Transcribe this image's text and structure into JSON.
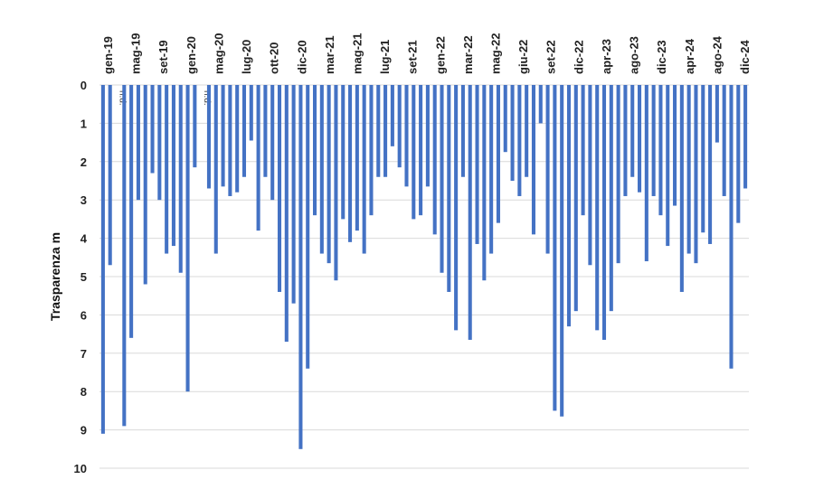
{
  "chart_data": {
    "type": "bar",
    "ylabel": "Trasparenza m",
    "ylim": [
      0,
      10
    ],
    "y_inverted": true,
    "x_axis_position": "top",
    "grid": true,
    "bar_color": "#4472C4",
    "missing_label": "n.d.",
    "x_tick_labels": [
      "gen-19",
      "mag-19",
      "set-19",
      "gen-20",
      "mag-20",
      "lug-20",
      "ott-20",
      "dic-20",
      "mar-21",
      "mag-21",
      "lug-21",
      "set-21",
      "gen-22",
      "mar-22",
      "mag-22",
      "giu-22",
      "set-22",
      "dic-22",
      "apr-23",
      "ago-23",
      "dic-23",
      "apr-24",
      "ago-24",
      "dic-24"
    ],
    "y_ticks": [
      0,
      1,
      2,
      3,
      4,
      5,
      6,
      7,
      8,
      9,
      10
    ],
    "values": [
      9.1,
      4.7,
      null,
      8.9,
      6.6,
      3.0,
      5.2,
      2.3,
      3.0,
      4.4,
      4.2,
      4.9,
      8.0,
      2.15,
      null,
      2.7,
      4.4,
      2.65,
      2.9,
      2.8,
      2.4,
      1.45,
      3.8,
      2.4,
      3.0,
      5.4,
      6.7,
      5.7,
      9.5,
      7.4,
      3.4,
      4.4,
      4.65,
      5.1,
      3.5,
      4.1,
      3.8,
      4.4,
      3.4,
      2.4,
      2.4,
      1.6,
      2.15,
      2.65,
      3.5,
      3.4,
      2.65,
      3.9,
      4.9,
      5.4,
      6.4,
      2.4,
      6.65,
      4.15,
      5.1,
      4.4,
      3.6,
      1.75,
      2.5,
      2.9,
      2.4,
      3.9,
      1.0,
      4.4,
      8.5,
      8.65,
      6.3,
      5.9,
      3.4,
      4.7,
      6.4,
      6.65,
      5.9,
      4.65,
      2.9,
      2.4,
      2.8,
      4.6,
      2.9,
      3.4,
      4.2,
      3.15,
      5.4,
      4.4,
      4.65,
      3.85,
      4.15,
      1.5,
      2.9,
      7.4,
      3.6,
      2.7
    ]
  }
}
